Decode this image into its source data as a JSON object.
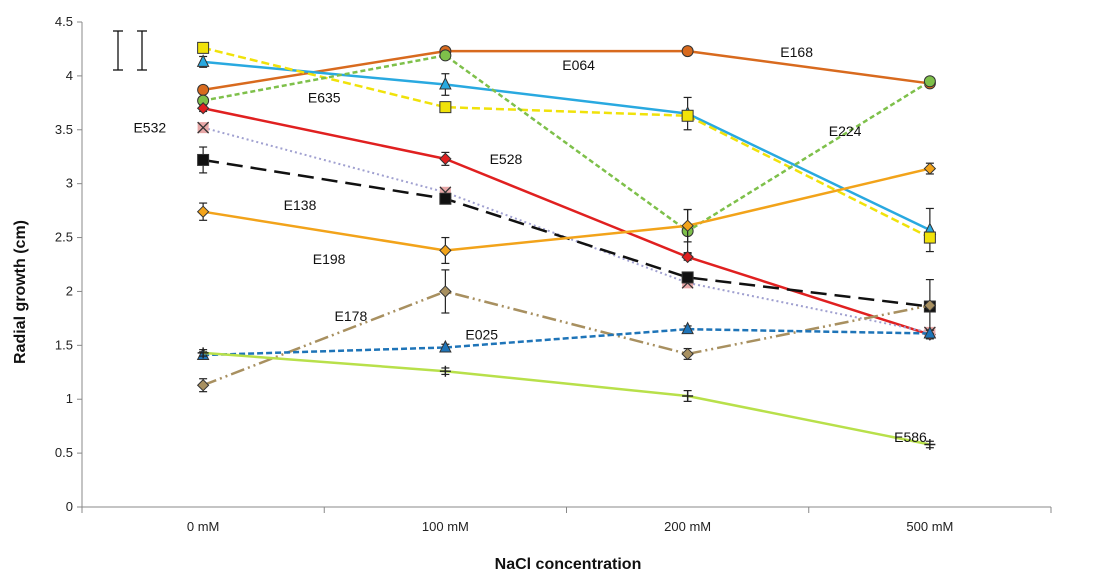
{
  "chart_data": {
    "type": "line",
    "title": "",
    "xlabel": "NaCl concentration",
    "ylabel": "Radial growth (cm)",
    "categories": [
      "0 mM",
      "100 mM",
      "200 mM",
      "500 mM"
    ],
    "ylim": [
      0,
      4.5
    ],
    "yticks": [
      "0",
      "0.5",
      "1",
      "1.5",
      "2",
      "2.5",
      "3",
      "3.5",
      "4",
      "4.5"
    ],
    "grid": false,
    "series": [
      {
        "name": "E168",
        "values": [
          3.87,
          4.23,
          4.23,
          3.93
        ],
        "err": [
          0.03,
          0.03,
          0.03,
          0.03
        ],
        "color": "#d86a1e",
        "dash": "",
        "width": 2.5,
        "marker": "circle"
      },
      {
        "name": "E064",
        "values": [
          4.13,
          3.92,
          3.65,
          2.57
        ],
        "err": [
          0.05,
          0.1,
          0.15,
          0.2
        ],
        "color": "#29a9e0",
        "dash": "",
        "width": 2.5,
        "marker": "triangle"
      },
      {
        "name": "E635",
        "values": [
          4.26,
          3.71,
          3.63,
          2.5
        ],
        "err": [
          0.03,
          0.03,
          0.03,
          0.05
        ],
        "color": "#f0e20a",
        "dash": "8,4",
        "width": 2.5,
        "marker": "square"
      },
      {
        "name": "E224",
        "values": [
          3.77,
          4.19,
          2.56,
          3.95
        ],
        "err": [
          0.03,
          0.03,
          0.2,
          0.03
        ],
        "color": "#7ec04a",
        "dash": "5,3",
        "width": 2.5,
        "marker": "circle"
      },
      {
        "name": "E528",
        "values": [
          3.7,
          3.23,
          2.32,
          1.6
        ],
        "err": [
          0.03,
          0.06,
          0.03,
          0.04
        ],
        "color": "#e02020",
        "dash": "",
        "width": 2.5,
        "marker": "diamond"
      },
      {
        "name": "E532",
        "values": [
          3.52,
          2.92,
          2.08,
          1.62
        ],
        "err": [
          0.03,
          0.03,
          0.03,
          0.03
        ],
        "color": "#a0a0d0",
        "dash": "2,3",
        "width": 2,
        "marker": "x"
      },
      {
        "name": "E138",
        "values": [
          3.22,
          2.86,
          2.13,
          1.86
        ],
        "err": [
          0.12,
          0.04,
          0.03,
          0.25
        ],
        "color": "#111111",
        "dash": "16,8",
        "width": 2.5,
        "marker": "square"
      },
      {
        "name": "E198",
        "values": [
          2.74,
          2.38,
          2.61,
          3.14
        ],
        "err": [
          0.08,
          0.12,
          0.15,
          0.05
        ],
        "color": "#f2a31a",
        "dash": "",
        "width": 2.5,
        "marker": "diamond"
      },
      {
        "name": "E178",
        "values": [
          1.13,
          2.0,
          1.42,
          1.87
        ],
        "err": [
          0.06,
          0.2,
          0.05,
          0.03
        ],
        "color": "#a89060",
        "dash": "14,4,2,4,2,4",
        "width": 2.5,
        "marker": "diamond"
      },
      {
        "name": "E025",
        "values": [
          1.41,
          1.48,
          1.65,
          1.61
        ],
        "err": [
          0.03,
          0.03,
          0.03,
          0.03
        ],
        "color": "#1e74b8",
        "dash": "6,3",
        "width": 2.5,
        "marker": "triangle"
      },
      {
        "name": "E586",
        "values": [
          1.43,
          1.26,
          1.03,
          0.58
        ],
        "err": [
          0.03,
          0.03,
          0.05,
          0.03
        ],
        "color": "#b8e04a",
        "dash": "",
        "width": 2.5,
        "marker": "plus"
      }
    ],
    "labels": [
      {
        "text": "E168",
        "x": 2.45,
        "y": 4.22
      },
      {
        "text": "E064",
        "x": 1.55,
        "y": 4.1
      },
      {
        "text": "E635",
        "x": 0.5,
        "y": 3.8
      },
      {
        "text": "E224",
        "x": 2.65,
        "y": 3.49
      },
      {
        "text": "E532",
        "x": -0.22,
        "y": 3.52
      },
      {
        "text": "E528",
        "x": 1.25,
        "y": 3.23
      },
      {
        "text": "E138",
        "x": 0.4,
        "y": 2.8
      },
      {
        "text": "E198",
        "x": 0.52,
        "y": 2.3
      },
      {
        "text": "E178",
        "x": 0.61,
        "y": 1.77
      },
      {
        "text": "E025",
        "x": 1.15,
        "y": 1.6
      },
      {
        "text": "E586",
        "x": 2.92,
        "y": 0.65
      }
    ]
  }
}
